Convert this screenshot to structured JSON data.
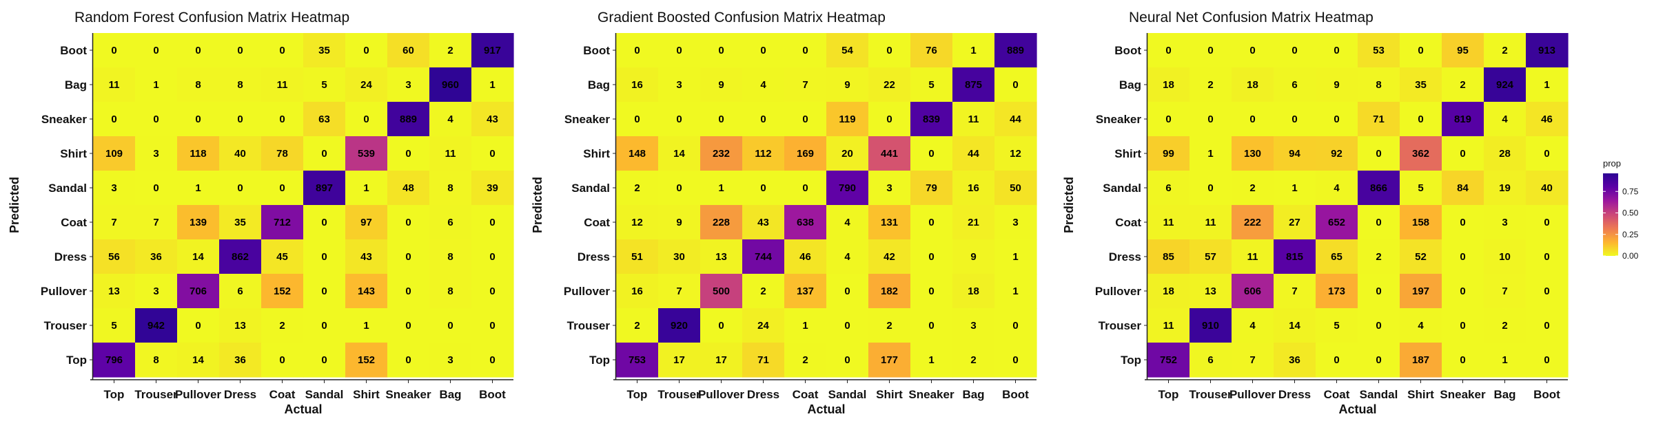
{
  "chart_data": [
    {
      "type": "heatmap",
      "title": "Random Forest Confusion Matrix Heatmap",
      "xlabel": "Actual",
      "ylabel": "Predicted",
      "x_categories": [
        "Top",
        "Trouser",
        "Pullover",
        "Dress",
        "Coat",
        "Sandal",
        "Shirt",
        "Sneaker",
        "Bag",
        "Boot"
      ],
      "y_categories": [
        "Boot",
        "Bag",
        "Sneaker",
        "Shirt",
        "Sandal",
        "Coat",
        "Dress",
        "Pullover",
        "Trouser",
        "Top"
      ],
      "values": [
        [
          0,
          0,
          0,
          0,
          0,
          35,
          0,
          60,
          2,
          917
        ],
        [
          11,
          1,
          8,
          8,
          11,
          5,
          24,
          3,
          960,
          1
        ],
        [
          0,
          0,
          0,
          0,
          0,
          63,
          0,
          889,
          4,
          43
        ],
        [
          109,
          3,
          118,
          40,
          78,
          0,
          539,
          0,
          11,
          0
        ],
        [
          3,
          0,
          1,
          0,
          0,
          897,
          1,
          48,
          8,
          39
        ],
        [
          7,
          7,
          139,
          35,
          712,
          0,
          97,
          0,
          6,
          0
        ],
        [
          56,
          36,
          14,
          862,
          45,
          0,
          43,
          0,
          8,
          0
        ],
        [
          13,
          3,
          706,
          6,
          152,
          0,
          143,
          0,
          8,
          0
        ],
        [
          5,
          942,
          0,
          13,
          2,
          0,
          1,
          0,
          0,
          0
        ],
        [
          796,
          8,
          14,
          36,
          0,
          0,
          152,
          0,
          3,
          0
        ]
      ]
    },
    {
      "type": "heatmap",
      "title": "Gradient Boosted Confusion Matrix Heatmap",
      "xlabel": "Actual",
      "ylabel": "Predicted",
      "x_categories": [
        "Top",
        "Trouser",
        "Pullover",
        "Dress",
        "Coat",
        "Sandal",
        "Shirt",
        "Sneaker",
        "Bag",
        "Boot"
      ],
      "y_categories": [
        "Boot",
        "Bag",
        "Sneaker",
        "Shirt",
        "Sandal",
        "Coat",
        "Dress",
        "Pullover",
        "Trouser",
        "Top"
      ],
      "values": [
        [
          0,
          0,
          0,
          0,
          0,
          54,
          0,
          76,
          1,
          889
        ],
        [
          16,
          3,
          9,
          4,
          7,
          9,
          22,
          5,
          875,
          0
        ],
        [
          0,
          0,
          0,
          0,
          0,
          119,
          0,
          839,
          11,
          44
        ],
        [
          148,
          14,
          232,
          112,
          169,
          20,
          441,
          0,
          44,
          12
        ],
        [
          2,
          0,
          1,
          0,
          0,
          790,
          3,
          79,
          16,
          50
        ],
        [
          12,
          9,
          228,
          43,
          638,
          4,
          131,
          0,
          21,
          3
        ],
        [
          51,
          30,
          13,
          744,
          46,
          4,
          42,
          0,
          9,
          1
        ],
        [
          16,
          7,
          500,
          2,
          137,
          0,
          182,
          0,
          18,
          1
        ],
        [
          2,
          920,
          0,
          24,
          1,
          0,
          2,
          0,
          3,
          0
        ],
        [
          753,
          17,
          17,
          71,
          2,
          0,
          177,
          1,
          2,
          0
        ]
      ]
    },
    {
      "type": "heatmap",
      "title": "Neural Net Confusion Matrix Heatmap",
      "xlabel": "Actual",
      "ylabel": "Predicted",
      "x_categories": [
        "Top",
        "Trouser",
        "Pullover",
        "Dress",
        "Coat",
        "Sandal",
        "Shirt",
        "Sneaker",
        "Bag",
        "Boot"
      ],
      "y_categories": [
        "Boot",
        "Bag",
        "Sneaker",
        "Shirt",
        "Sandal",
        "Coat",
        "Dress",
        "Pullover",
        "Trouser",
        "Top"
      ],
      "values": [
        [
          0,
          0,
          0,
          0,
          0,
          53,
          0,
          95,
          2,
          913
        ],
        [
          18,
          2,
          18,
          6,
          9,
          8,
          35,
          2,
          924,
          1
        ],
        [
          0,
          0,
          0,
          0,
          0,
          71,
          0,
          819,
          4,
          46
        ],
        [
          99,
          1,
          130,
          94,
          92,
          0,
          362,
          0,
          28,
          0
        ],
        [
          6,
          0,
          2,
          1,
          4,
          866,
          5,
          84,
          19,
          40
        ],
        [
          11,
          11,
          222,
          27,
          652,
          0,
          158,
          0,
          3,
          0
        ],
        [
          85,
          57,
          11,
          815,
          65,
          2,
          52,
          0,
          10,
          0
        ],
        [
          18,
          13,
          606,
          7,
          173,
          0,
          197,
          0,
          7,
          0
        ],
        [
          11,
          910,
          4,
          14,
          5,
          0,
          4,
          0,
          2,
          0
        ],
        [
          752,
          6,
          7,
          36,
          0,
          0,
          187,
          0,
          1,
          0
        ]
      ]
    }
  ],
  "legend": {
    "title": "prop",
    "ticks": [
      "0.00",
      "0.25",
      "0.50",
      "0.75"
    ],
    "tick_values": [
      0,
      0.25,
      0.5,
      0.75
    ],
    "range": [
      0,
      0.96
    ]
  },
  "colors": {
    "low": "#f0f921",
    "high": "#2c0594",
    "palette": [
      "#f0f921",
      "#fdb42f",
      "#ed7953",
      "#cc4778",
      "#9c179e",
      "#5c01a6",
      "#2c0594"
    ]
  }
}
